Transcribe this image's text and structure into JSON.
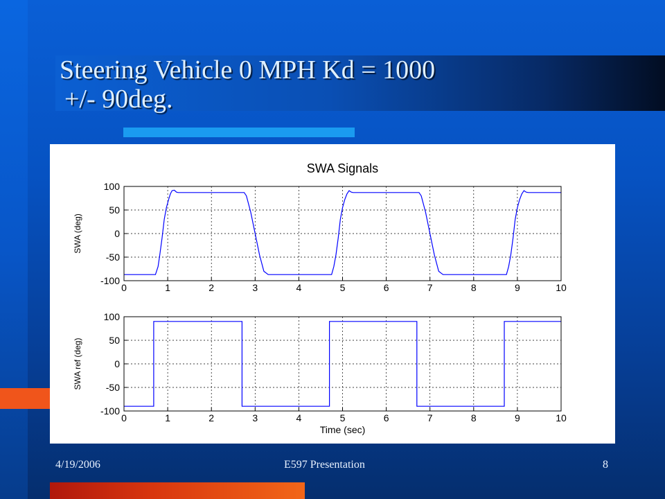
{
  "slide": {
    "title_line1": "Steering Vehicle 0 MPH Kd = 1000",
    "title_line2": "+/- 90deg.",
    "footer_date": "4/19/2006",
    "footer_center": "E597 Presentation",
    "page_number": "8"
  },
  "colors": {
    "accent_blue_bar": "#1a9bf0",
    "accent_orange": "#f0551b",
    "plot_line": "#0000ff"
  },
  "chart_data": [
    {
      "type": "line",
      "title": "SWA Signals",
      "xlabel": "",
      "ylabel": "SWA (deg)",
      "xlim": [
        0,
        10
      ],
      "ylim": [
        -100,
        100
      ],
      "xticks": [
        0,
        1,
        2,
        3,
        4,
        5,
        6,
        7,
        8,
        9,
        10
      ],
      "yticks": [
        100,
        50,
        0,
        -50,
        -100
      ],
      "grid": true,
      "series": [
        {
          "x": [
            0,
            0.72,
            0.78,
            0.82,
            0.87,
            0.92,
            0.97,
            1.02,
            1.06,
            1.1,
            1.15,
            1.2,
            1.24,
            2.75,
            2.8,
            2.9,
            3.0,
            3.1,
            3.2,
            3.3,
            4.75,
            4.8,
            4.85,
            4.9,
            4.95,
            5.0,
            5.05,
            5.1,
            5.15,
            5.2,
            5.24,
            6.75,
            6.8,
            6.9,
            7.0,
            7.1,
            7.2,
            7.3,
            8.75,
            8.8,
            8.85,
            8.9,
            8.95,
            9.0,
            9.05,
            9.1,
            9.15,
            9.2,
            9.25,
            10
          ],
          "y": [
            -87,
            -87,
            -70,
            -45,
            -10,
            30,
            55,
            72,
            84,
            91,
            92,
            88,
            87,
            87,
            80,
            45,
            0,
            -45,
            -80,
            -87,
            -87,
            -70,
            -45,
            -10,
            30,
            55,
            72,
            84,
            91,
            88,
            87,
            87,
            80,
            45,
            0,
            -45,
            -80,
            -87,
            -87,
            -70,
            -45,
            -10,
            30,
            55,
            72,
            84,
            91,
            88,
            87,
            87
          ]
        }
      ]
    },
    {
      "type": "line",
      "title": "",
      "xlabel": "Time (sec)",
      "ylabel": "SWA ref (deg)",
      "xlim": [
        0,
        10
      ],
      "ylim": [
        -100,
        100
      ],
      "xticks": [
        0,
        1,
        2,
        3,
        4,
        5,
        6,
        7,
        8,
        9,
        10
      ],
      "yticks": [
        100,
        50,
        0,
        -50,
        -100
      ],
      "grid": true,
      "series": [
        {
          "x": [
            0,
            0.68,
            0.68,
            2.7,
            2.7,
            4.7,
            4.7,
            6.7,
            6.7,
            8.7,
            8.7,
            10
          ],
          "y": [
            -90,
            -90,
            90,
            90,
            -90,
            -90,
            90,
            90,
            -90,
            -90,
            90,
            90
          ]
        }
      ]
    }
  ]
}
